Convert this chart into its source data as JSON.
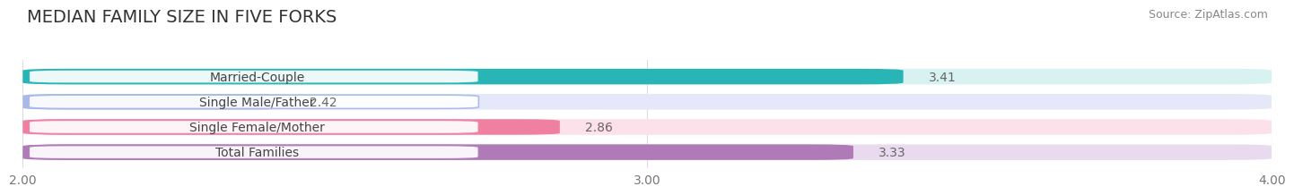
{
  "title": "MEDIAN FAMILY SIZE IN FIVE FORKS",
  "source": "Source: ZipAtlas.com",
  "categories": [
    "Married-Couple",
    "Single Male/Father",
    "Single Female/Mother",
    "Total Families"
  ],
  "values": [
    3.41,
    2.42,
    2.86,
    3.33
  ],
  "bar_colors": [
    "#29b5b5",
    "#a8b8e8",
    "#f080a0",
    "#b07ab8"
  ],
  "bar_bg_colors": [
    "#d8f2f2",
    "#e4e8f8",
    "#fce0ea",
    "#eadaf0"
  ],
  "xlim": [
    2.0,
    4.0
  ],
  "xticks": [
    2.0,
    3.0,
    4.0
  ],
  "xtick_labels": [
    "2.00",
    "3.00",
    "4.00"
  ],
  "label_color": "#777777",
  "value_color": "#666666",
  "title_fontsize": 14,
  "bar_label_fontsize": 10,
  "value_fontsize": 10,
  "source_fontsize": 9,
  "background_color": "#ffffff"
}
